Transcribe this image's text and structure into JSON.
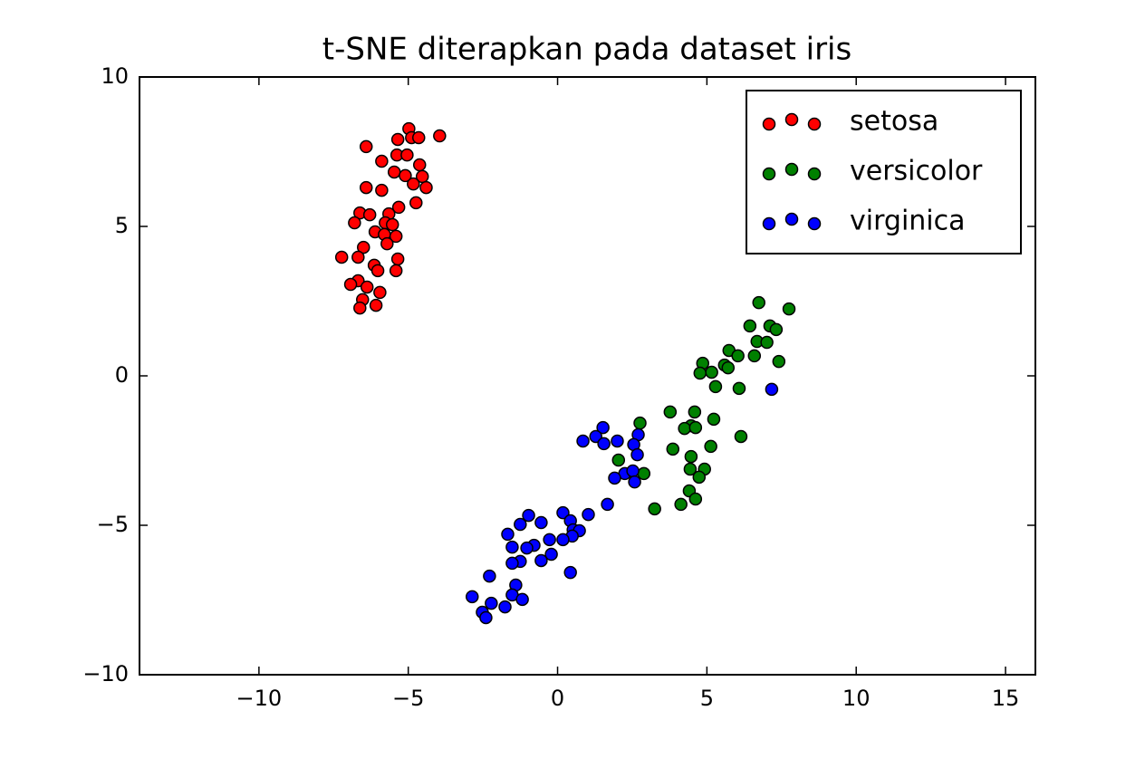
{
  "chart_data": {
    "type": "scatter",
    "title": "t-SNE diterapkan pada dataset iris",
    "xlim": [
      -14,
      16
    ],
    "ylim": [
      -10,
      10
    ],
    "xticks": [
      {
        "value": -10,
        "label": "−10"
      },
      {
        "value": -5,
        "label": "−5"
      },
      0,
      5,
      10,
      15
    ],
    "yticks": [
      {
        "value": -10,
        "label": "−10"
      },
      {
        "value": -5,
        "label": "−5"
      },
      0,
      5,
      10
    ],
    "legend": "upper right",
    "series": [
      {
        "name": "setosa",
        "color": "red",
        "x": [
          -3.95,
          -4.98,
          -4.89,
          -4.65,
          -5.35,
          -6.41,
          -5.38,
          -5.04,
          -5.89,
          -4.62,
          -5.47,
          -5.1,
          -4.53,
          -4.83,
          -4.4,
          -6.41,
          -5.89,
          -4.74,
          -5.32,
          -6.62,
          -6.29,
          -5.65,
          -6.8,
          -5.77,
          -5.53,
          -6.11,
          -5.8,
          -5.41,
          -5.71,
          -6.5,
          -7.23,
          -6.68,
          -5.35,
          -6.14,
          -6.02,
          -5.41,
          -6.68,
          -6.93,
          -6.38,
          -5.95,
          -6.53,
          -6.08,
          -6.62
        ],
        "y": [
          8.03,
          8.27,
          7.97,
          7.97,
          7.91,
          7.67,
          7.39,
          7.39,
          7.18,
          7.06,
          6.82,
          6.7,
          6.67,
          6.42,
          6.3,
          6.3,
          6.21,
          5.79,
          5.64,
          5.45,
          5.39,
          5.42,
          5.12,
          5.12,
          5.06,
          4.82,
          4.73,
          4.67,
          4.42,
          4.3,
          3.97,
          3.97,
          3.91,
          3.7,
          3.52,
          3.52,
          3.18,
          3.06,
          2.97,
          2.79,
          2.55,
          2.36,
          2.27
        ]
      },
      {
        "name": "versicolor",
        "color": "green",
        "x": [
          6.74,
          7.75,
          6.44,
          7.11,
          7.32,
          6.68,
          7.01,
          5.74,
          6.04,
          6.59,
          5.59,
          4.86,
          7.41,
          5.16,
          4.77,
          5.71,
          5.29,
          6.08,
          3.77,
          4.59,
          5.23,
          2.76,
          4.47,
          4.25,
          4.62,
          6.14,
          3.86,
          5.13,
          4.47,
          2.04,
          4.44,
          4.92,
          2.89,
          4.74,
          4.41,
          4.62,
          4.13,
          3.25
        ],
        "y": [
          2.45,
          2.24,
          1.67,
          1.67,
          1.55,
          1.15,
          1.12,
          0.85,
          0.67,
          0.67,
          0.36,
          0.42,
          0.48,
          0.12,
          0.09,
          0.27,
          -0.36,
          -0.42,
          -1.21,
          -1.21,
          -1.45,
          -1.58,
          -1.67,
          -1.76,
          -1.73,
          -2.03,
          -2.45,
          -2.36,
          -2.7,
          -2.82,
          -3.12,
          -3.12,
          -3.27,
          -3.39,
          -3.85,
          -4.12,
          -4.3,
          -4.45
        ]
      },
      {
        "name": "virginica",
        "color": "blue",
        "x": [
          7.17,
          1.52,
          1.28,
          2.7,
          1.55,
          2.0,
          0.85,
          2.55,
          2.67,
          2.25,
          2.52,
          1.91,
          2.58,
          1.67,
          1.03,
          0.18,
          -0.97,
          0.43,
          -0.55,
          -1.25,
          0.52,
          0.73,
          -1.67,
          0.49,
          -0.27,
          0.18,
          -0.79,
          -1.03,
          -1.52,
          -0.21,
          -0.55,
          -1.25,
          -1.52,
          0.43,
          -2.28,
          -1.4,
          -1.52,
          -1.18,
          -2.86,
          -2.22,
          -1.76,
          -2.52,
          -2.4
        ],
        "y": [
          -0.45,
          -1.73,
          -2.03,
          -1.97,
          -2.27,
          -2.18,
          -2.18,
          -2.3,
          -2.64,
          -3.27,
          -3.18,
          -3.42,
          -3.55,
          -4.3,
          -4.64,
          -4.58,
          -4.67,
          -4.85,
          -4.91,
          -4.97,
          -5.15,
          -5.18,
          -5.3,
          -5.36,
          -5.48,
          -5.48,
          -5.67,
          -5.76,
          -5.73,
          -5.97,
          -6.18,
          -6.21,
          -6.27,
          -6.58,
          -6.7,
          -7.0,
          -7.33,
          -7.48,
          -7.39,
          -7.61,
          -7.73,
          -7.91,
          -8.09
        ]
      }
    ]
  }
}
